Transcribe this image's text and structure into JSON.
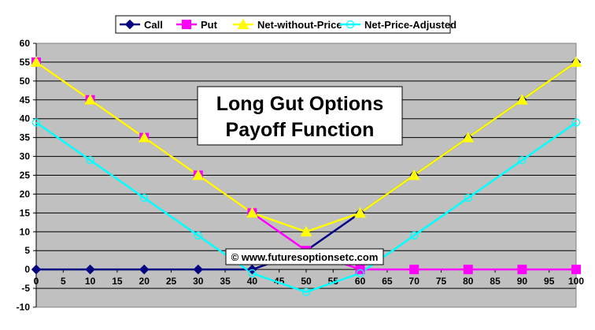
{
  "chart_data": {
    "type": "line",
    "title_lines": [
      "Long Gut Options",
      "Payoff Function"
    ],
    "watermark": "© www.futuresoptionsetc.com",
    "x": [
      0,
      10,
      20,
      30,
      40,
      50,
      60,
      70,
      80,
      90,
      100
    ],
    "xlim": [
      0,
      100
    ],
    "xticks": [
      0,
      5,
      10,
      15,
      20,
      25,
      30,
      35,
      40,
      45,
      50,
      55,
      60,
      65,
      70,
      75,
      80,
      85,
      90,
      95,
      100
    ],
    "ylim": [
      -10,
      60
    ],
    "yticks": [
      -10,
      -5,
      0,
      5,
      10,
      15,
      20,
      25,
      30,
      35,
      40,
      45,
      50,
      55,
      60
    ],
    "grid": true,
    "legend_position": "top-center",
    "plot_background": "#c0c0c0",
    "series": [
      {
        "name": "Call",
        "values": [
          0,
          0,
          0,
          0,
          0,
          5,
          15,
          25,
          35,
          45,
          55
        ],
        "color": "#000080",
        "marker": "diamond"
      },
      {
        "name": "Put",
        "values": [
          55,
          45,
          35,
          25,
          15,
          5,
          0,
          0,
          0,
          0,
          0
        ],
        "color": "#ff00ff",
        "marker": "square"
      },
      {
        "name": "Net-without-Price",
        "values": [
          55,
          45,
          35,
          25,
          15,
          10,
          15,
          25,
          35,
          45,
          55
        ],
        "color": "#ffff00",
        "marker": "triangle"
      },
      {
        "name": "Net-Price-Adjusted",
        "values": [
          39,
          29,
          19,
          9,
          -1,
          -6,
          -1,
          9,
          19,
          29,
          39
        ],
        "color": "#00ffff",
        "marker": "circle"
      }
    ]
  }
}
